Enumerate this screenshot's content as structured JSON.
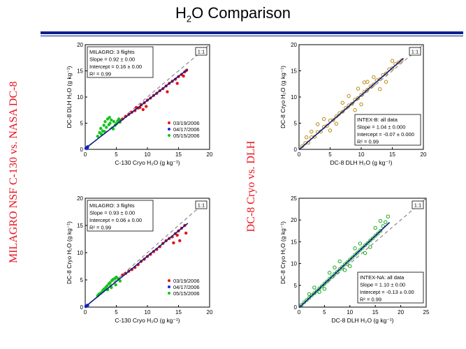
{
  "slide": {
    "title_main": "H",
    "title_sub": "2",
    "title_rest": "O Comparison",
    "left_label": "MILAGRO NSF C-130 vs. NASA DC-8",
    "right_label": "DC-8 Cryo vs. DLH"
  },
  "colors": {
    "rule": "#0a1f8f",
    "label": "#e8101a"
  },
  "chart_data": [
    {
      "id": "tl",
      "type": "scatter",
      "xlabel": "C-130 Cryo H₂O  (g kg⁻¹)",
      "ylabel": "DC-8 DLH H₂O  (g kg⁻¹)",
      "xlim": [
        0,
        20
      ],
      "ylim": [
        0,
        20
      ],
      "xticks": [
        0,
        5,
        10,
        15,
        20
      ],
      "yticks": [
        0,
        5,
        10,
        15,
        20
      ],
      "one_to_one_label": "1:1",
      "stats": [
        "MILAGRO: 3 flights",
        "Slope = 0.92 ± 0.00",
        "Intercept = 0.16 ± 0.00",
        "R² = 0.99"
      ],
      "fit": {
        "slope": 0.92,
        "intercept": 0.16,
        "x_range": [
          0,
          16.5
        ]
      },
      "legend": [
        "03/19/2006",
        "04/17/2006",
        "05/15/2006"
      ],
      "series": [
        {
          "name": "03/19/2006",
          "color": "#e0161b",
          "marker": "filled",
          "points": [
            [
              5.5,
              5.6
            ],
            [
              6,
              5.8
            ],
            [
              6.5,
              6.3
            ],
            [
              7,
              6.7
            ],
            [
              7.5,
              7.1
            ],
            [
              8,
              7.4
            ],
            [
              8.2,
              8.0
            ],
            [
              8.5,
              7.9
            ],
            [
              9,
              8.5
            ],
            [
              9.3,
              7.6
            ],
            [
              9.5,
              8.9
            ],
            [
              10,
              9.4
            ],
            [
              10.5,
              9.8
            ],
            [
              11,
              10.3
            ],
            [
              11.5,
              10.7
            ],
            [
              12,
              11.2
            ],
            [
              12.5,
              11.6
            ],
            [
              13,
              12.1
            ],
            [
              13.5,
              12.6
            ],
            [
              14,
              13.0
            ],
            [
              14.5,
              13.4
            ],
            [
              15,
              13.9
            ],
            [
              15.5,
              14.3
            ],
            [
              16,
              14.8
            ],
            [
              16.3,
              15.1
            ],
            [
              14.8,
              12.6
            ],
            [
              15.8,
              14.0
            ],
            [
              13.2,
              11.0
            ],
            [
              9.8,
              8.2
            ],
            [
              8.8,
              8.0
            ]
          ]
        },
        {
          "name": "04/17/2006",
          "color": "#1a2ad6",
          "marker": "filled",
          "points": [
            [
              0.1,
              0.2
            ],
            [
              0.2,
              0.3
            ],
            [
              0.3,
              0.4
            ],
            [
              0.4,
              0.5
            ],
            [
              0.25,
              0.15
            ],
            [
              0.35,
              0.3
            ]
          ]
        },
        {
          "name": "05/15/2006",
          "color": "#12c41a",
          "marker": "filled",
          "points": [
            [
              2,
              2.5
            ],
            [
              2.3,
              3.2
            ],
            [
              2.5,
              4.0
            ],
            [
              2.8,
              3.5
            ],
            [
              3,
              4.6
            ],
            [
              3.2,
              5.3
            ],
            [
              3.4,
              4.2
            ],
            [
              3.6,
              5.8
            ],
            [
              3.8,
              4.7
            ],
            [
              4,
              5.0
            ],
            [
              4.2,
              5.6
            ],
            [
              4.4,
              4.1
            ],
            [
              4.6,
              5.3
            ],
            [
              4.8,
              4.6
            ],
            [
              5,
              4.9
            ],
            [
              5.2,
              5.4
            ],
            [
              5.4,
              5.8
            ],
            [
              5.6,
              5.2
            ],
            [
              3.1,
              3.4
            ],
            [
              2.6,
              2.9
            ],
            [
              4.5,
              3.9
            ],
            [
              3.9,
              6.1
            ]
          ]
        }
      ]
    },
    {
      "id": "tr",
      "type": "scatter",
      "xlabel": "DC-8 DLH   H₂O   (g kg⁻¹)",
      "ylabel": "DC-8 Cryo H₂O  (g kg⁻¹)",
      "xlim": [
        0,
        20
      ],
      "ylim": [
        0,
        20
      ],
      "xticks": [
        0,
        5,
        10,
        15,
        20
      ],
      "yticks": [
        0,
        5,
        10,
        15,
        20
      ],
      "one_to_one_label": "1:1",
      "stats": [
        "INTEX-B: all data",
        "Slope = 1.04 ± 0.000",
        "Intercept = -0.07 ± 0.000",
        "R² = 0.99"
      ],
      "fit": {
        "slope": 1.04,
        "intercept": -0.07,
        "x_range": [
          0,
          16.8
        ]
      },
      "series": [
        {
          "name": "INTEX-B",
          "color": "#b8860b",
          "marker": "open",
          "points": [
            [
              0.5,
              0.6
            ],
            [
              1,
              1.2
            ],
            [
              1.5,
              1.3
            ],
            [
              2,
              2.3
            ],
            [
              2.5,
              2.4
            ],
            [
              3,
              3.3
            ],
            [
              3.5,
              3.4
            ],
            [
              4,
              4.3
            ],
            [
              4.5,
              4.5
            ],
            [
              5,
              5.5
            ],
            [
              5.5,
              5.6
            ],
            [
              6,
              6.3
            ],
            [
              6.5,
              6.9
            ],
            [
              7,
              7.2
            ],
            [
              7.5,
              7.9
            ],
            [
              8,
              8.4
            ],
            [
              8.5,
              8.7
            ],
            [
              9,
              9.5
            ],
            [
              9.5,
              9.8
            ],
            [
              10,
              10.4
            ],
            [
              10.5,
              11.0
            ],
            [
              11,
              11.4
            ],
            [
              11.5,
              12.0
            ],
            [
              12,
              12.4
            ],
            [
              12.5,
              13.2
            ],
            [
              13,
              13.4
            ],
            [
              13.5,
              14.2
            ],
            [
              14,
              14.5
            ],
            [
              14.5,
              15.3
            ],
            [
              15,
              15.5
            ],
            [
              15.5,
              16.3
            ],
            [
              16,
              16.6
            ],
            [
              16.5,
              17.0
            ],
            [
              3,
              4.8
            ],
            [
              5,
              3.6
            ],
            [
              7,
              8.9
            ],
            [
              9,
              7.5
            ],
            [
              11,
              12.9
            ],
            [
              13,
              11.5
            ],
            [
              8,
              10.2
            ],
            [
              10,
              8.6
            ],
            [
              6,
              4.9
            ],
            [
              4,
              5.8
            ],
            [
              12,
              13.8
            ],
            [
              14,
              12.9
            ],
            [
              2,
              3.4
            ],
            [
              15,
              16.9
            ],
            [
              1.2,
              2.3
            ],
            [
              10.5,
              12.8
            ],
            [
              9.5,
              11.6
            ]
          ]
        }
      ]
    },
    {
      "id": "bl",
      "type": "scatter",
      "xlabel": "C-130 Cryo H₂O  (g kg⁻¹)",
      "ylabel": "DC-8 Cryo H₂O  (g kg⁻¹)",
      "xlim": [
        0,
        20
      ],
      "ylim": [
        0,
        20
      ],
      "xticks": [
        0,
        5,
        10,
        15,
        20
      ],
      "yticks": [
        0,
        5,
        10,
        15,
        20
      ],
      "one_to_one_label": "1:1",
      "stats": [
        "MILAGRO: 3 flights",
        "Slope = 0.93 ± 0.00",
        "Intercept = 0.06 ± 0.00",
        "R² = 0.99"
      ],
      "fit": {
        "slope": 0.93,
        "intercept": 0.06,
        "x_range": [
          0,
          16.5
        ]
      },
      "legend": [
        "03/19/2006",
        "04/17/2006",
        "05/15/2006"
      ],
      "series": [
        {
          "name": "03/19/2006",
          "color": "#e0161b",
          "marker": "filled",
          "points": [
            [
              6,
              5.9
            ],
            [
              6.5,
              6.2
            ],
            [
              7,
              6.6
            ],
            [
              7.5,
              6.9
            ],
            [
              8,
              7.3
            ],
            [
              8.5,
              7.8
            ],
            [
              9,
              8.4
            ],
            [
              9.5,
              8.8
            ],
            [
              10,
              9.3
            ],
            [
              10.5,
              9.7
            ],
            [
              11,
              10.2
            ],
            [
              11.5,
              10.6
            ],
            [
              12,
              11.1
            ],
            [
              12.5,
              11.7
            ],
            [
              13,
              12.2
            ],
            [
              13.5,
              12.6
            ],
            [
              14,
              12.9
            ],
            [
              14.5,
              13.5
            ],
            [
              15,
              14.0
            ],
            [
              15.5,
              14.5
            ],
            [
              16,
              15.0
            ],
            [
              16.2,
              13.6
            ],
            [
              15.2,
              12.2
            ],
            [
              14.2,
              11.8
            ],
            [
              14.8,
              13.2
            ]
          ]
        },
        {
          "name": "04/17/2006",
          "color": "#1a2ad6",
          "marker": "filled",
          "points": [
            [
              0.1,
              0.1
            ],
            [
              0.2,
              0.2
            ],
            [
              0.3,
              0.3
            ],
            [
              0.4,
              0.35
            ],
            [
              0.15,
              0.25
            ]
          ]
        },
        {
          "name": "05/15/2006",
          "color": "#12c41a",
          "marker": "filled",
          "points": [
            [
              2,
              2.1
            ],
            [
              2.5,
              2.6
            ],
            [
              2.8,
              3.0
            ],
            [
              3,
              3.3
            ],
            [
              3.3,
              3.6
            ],
            [
              3.5,
              3.9
            ],
            [
              3.8,
              4.3
            ],
            [
              4,
              4.5
            ],
            [
              4.3,
              4.9
            ],
            [
              4.5,
              5.1
            ],
            [
              4.8,
              5.3
            ],
            [
              5,
              5.5
            ],
            [
              5.3,
              5.2
            ],
            [
              5.6,
              4.8
            ],
            [
              4.2,
              3.6
            ],
            [
              3.6,
              3.2
            ],
            [
              2.2,
              2.4
            ],
            [
              4.9,
              4.1
            ]
          ]
        }
      ]
    },
    {
      "id": "br",
      "type": "scatter",
      "xlabel": "DC-8 DLH   H₂O  (g kg⁻¹)",
      "ylabel": "DC-8 Cryo H₂O  (g kg⁻¹)",
      "xlim": [
        0,
        25
      ],
      "ylim": [
        0,
        25
      ],
      "xticks": [
        0,
        5,
        10,
        15,
        20,
        25
      ],
      "yticks": [
        0,
        5,
        10,
        15,
        20,
        25
      ],
      "one_to_one_label": "1:1",
      "stats": [
        "INTEX-NA: all data",
        "Slope = 1.10 ± 0.00",
        "Intercept = -0.13 ± 0.00",
        "R² = 0.99"
      ],
      "fit": {
        "slope": 1.1,
        "intercept": -0.13,
        "x_range": [
          0,
          17.8
        ]
      },
      "series": [
        {
          "name": "INTEX-NA",
          "color": "#16a81c",
          "marker": "open",
          "points": [
            [
              0.5,
              0.5
            ],
            [
              1,
              1.1
            ],
            [
              1.5,
              1.6
            ],
            [
              2,
              2.1
            ],
            [
              2.5,
              2.7
            ],
            [
              3,
              3.2
            ],
            [
              3.5,
              3.7
            ],
            [
              4,
              4.3
            ],
            [
              4.5,
              4.8
            ],
            [
              5,
              5.4
            ],
            [
              5.5,
              5.9
            ],
            [
              6,
              6.5
            ],
            [
              6.5,
              7.0
            ],
            [
              7,
              7.6
            ],
            [
              7.5,
              8.1
            ],
            [
              8,
              8.7
            ],
            [
              8.5,
              9.2
            ],
            [
              9,
              9.8
            ],
            [
              9.5,
              10.3
            ],
            [
              10,
              10.9
            ],
            [
              10.5,
              11.4
            ],
            [
              11,
              12.0
            ],
            [
              11.5,
              12.5
            ],
            [
              12,
              13.1
            ],
            [
              12.5,
              13.6
            ],
            [
              13,
              14.2
            ],
            [
              13.5,
              14.7
            ],
            [
              14,
              15.3
            ],
            [
              14.5,
              15.8
            ],
            [
              15,
              16.4
            ],
            [
              15.5,
              16.9
            ],
            [
              16,
              17.5
            ],
            [
              16.5,
              18.6
            ],
            [
              17,
              19.5
            ],
            [
              17.5,
              20.8
            ],
            [
              3,
              4.5
            ],
            [
              5,
              4.2
            ],
            [
              7,
              9.1
            ],
            [
              9,
              8.5
            ],
            [
              11,
              13.5
            ],
            [
              13,
              12.4
            ],
            [
              15,
              18.2
            ],
            [
              8,
              10.5
            ],
            [
              10,
              9.4
            ],
            [
              12,
              14.6
            ],
            [
              14,
              13.8
            ],
            [
              16,
              19.8
            ],
            [
              6,
              7.9
            ],
            [
              4,
              3.5
            ],
            [
              2,
              3.0
            ]
          ]
        }
      ]
    }
  ]
}
